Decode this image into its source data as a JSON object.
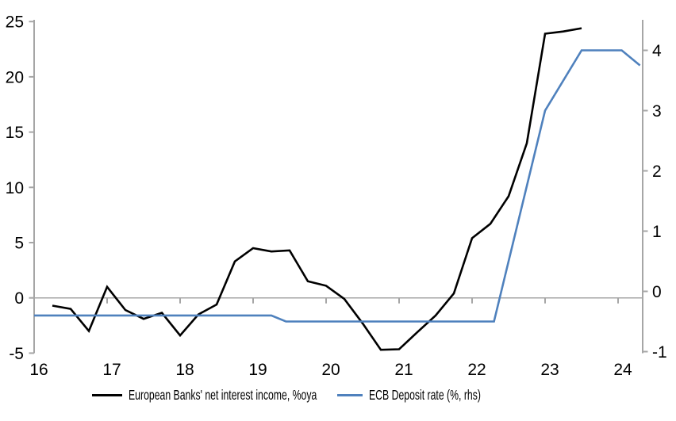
{
  "chart": {
    "title": "",
    "background": "#ffffff",
    "axis_color": "#a6a6a6",
    "zero_line_color": "#a6a6a6",
    "text_color": "#000000"
  },
  "chart_data": {
    "type": "line",
    "title": "",
    "grid": "zero-line-only",
    "legend_position": "bottom",
    "x_axis": {
      "label": "",
      "ticks": [
        "16",
        "17",
        "18",
        "19",
        "20",
        "21",
        "22",
        "23",
        "24"
      ],
      "range": [
        16,
        24.35
      ]
    },
    "left_axis": {
      "label": "",
      "ticks": [
        "25",
        "20",
        "15",
        "10",
        "5",
        "0",
        "-5"
      ],
      "range": [
        -5,
        25
      ]
    },
    "right_axis": {
      "label": "",
      "ticks": [
        "4",
        "3",
        "2",
        "1",
        "0",
        "-1"
      ],
      "range": [
        -1.1,
        4.55
      ]
    },
    "series": [
      {
        "name": "European Banks' net interest income, %oya",
        "axis": "left",
        "color": "#000000",
        "points": [
          [
            16.25,
            -0.7
          ],
          [
            16.5,
            -1.0
          ],
          [
            16.75,
            -3.0
          ],
          [
            17.0,
            1.0
          ],
          [
            17.25,
            -1.1
          ],
          [
            17.5,
            -1.9
          ],
          [
            17.75,
            -1.35
          ],
          [
            18.0,
            -3.4
          ],
          [
            18.25,
            -1.5
          ],
          [
            18.5,
            -0.6
          ],
          [
            18.75,
            3.3
          ],
          [
            19.0,
            4.5
          ],
          [
            19.25,
            4.2
          ],
          [
            19.5,
            4.3
          ],
          [
            19.75,
            1.5
          ],
          [
            20.0,
            1.1
          ],
          [
            20.25,
            -0.1
          ],
          [
            20.5,
            -2.3
          ],
          [
            20.75,
            -4.7
          ],
          [
            21.0,
            -4.65
          ],
          [
            21.25,
            -3.1
          ],
          [
            21.5,
            -1.6
          ],
          [
            21.75,
            0.4
          ],
          [
            22.0,
            5.4
          ],
          [
            22.25,
            6.7
          ],
          [
            22.5,
            9.2
          ],
          [
            22.75,
            14.0
          ],
          [
            23.0,
            23.9
          ],
          [
            23.25,
            24.1
          ],
          [
            23.5,
            24.4
          ]
        ]
      },
      {
        "name": "ECB Deposit rate (%, rhs)",
        "axis": "right",
        "color": "#4f81bd",
        "points": [
          [
            16.0,
            -0.4
          ],
          [
            19.25,
            -0.4
          ],
          [
            19.45,
            -0.5
          ],
          [
            22.3,
            -0.5
          ],
          [
            23.0,
            3.0
          ],
          [
            23.5,
            4.0
          ],
          [
            24.05,
            4.0
          ],
          [
            24.3,
            3.75
          ]
        ]
      }
    ]
  }
}
